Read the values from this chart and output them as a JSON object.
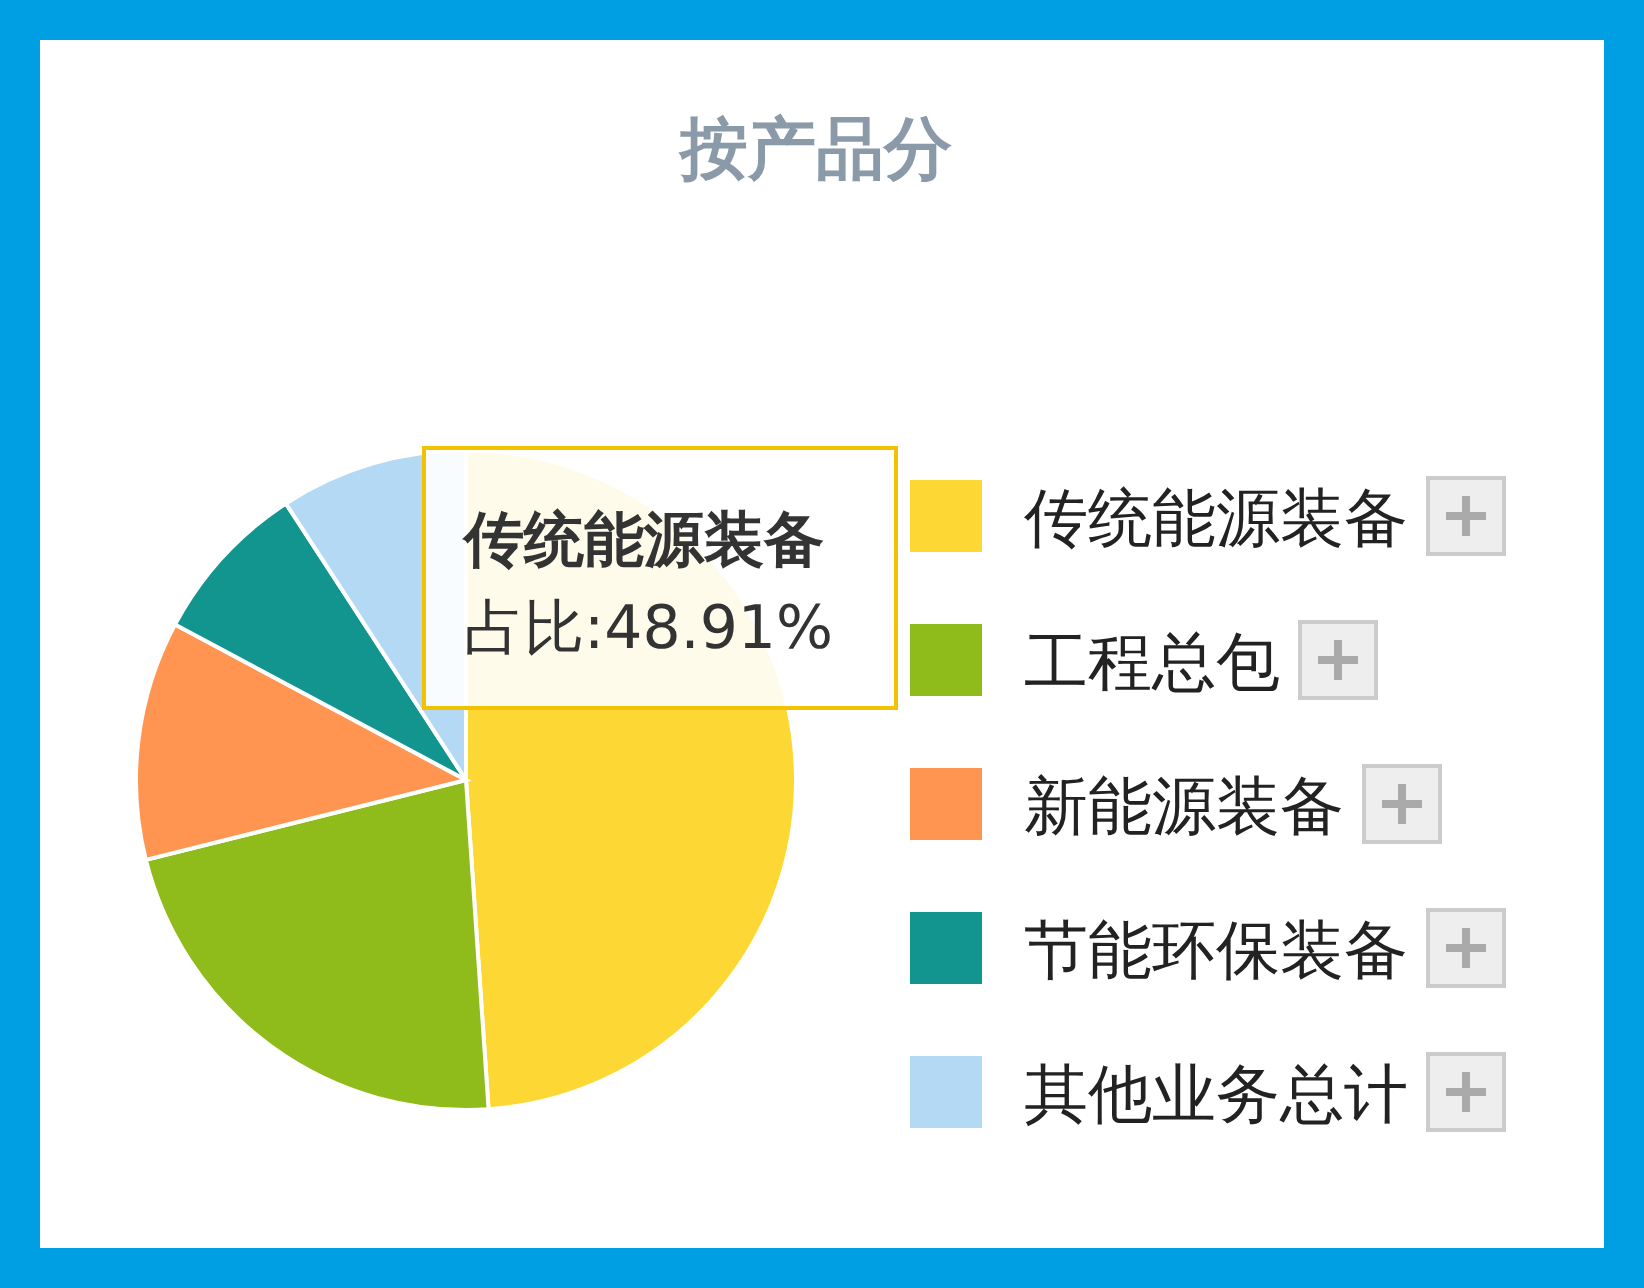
{
  "chart_data": {
    "type": "pie",
    "title": "按产品分",
    "categories": [
      "传统能源装备",
      "工程总包",
      "新能源装备",
      "节能环保装备",
      "其他业务总计"
    ],
    "values": [
      48.91,
      22.2,
      11.7,
      8.0,
      9.19
    ],
    "colors": [
      "#fdd835",
      "#8fbc1a",
      "#ff9550",
      "#12948f",
      "#b3d9f5"
    ],
    "legend": "right",
    "annotations": [
      "传统能源装备",
      "占比:48.91%"
    ]
  }
}
